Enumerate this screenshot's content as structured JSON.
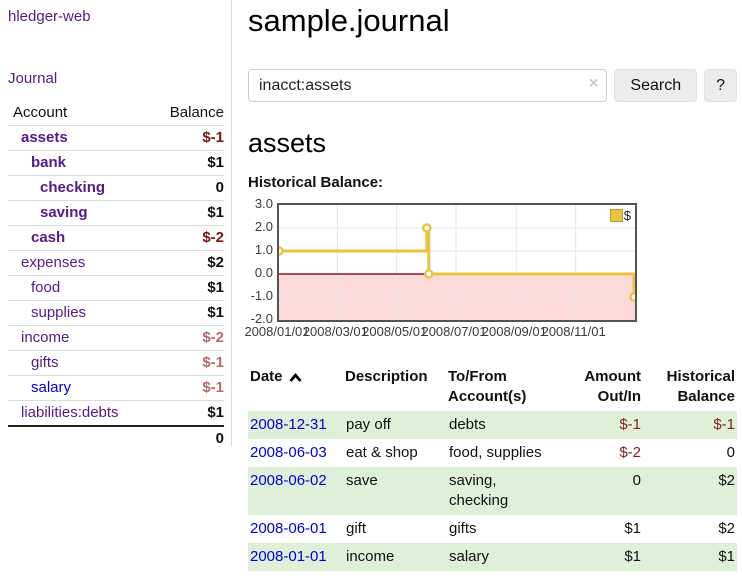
{
  "app": {
    "brand": "hledger-web"
  },
  "nav": {
    "journal": "Journal"
  },
  "sidebar": {
    "headers": [
      "Account",
      "Balance"
    ],
    "accounts": [
      {
        "name": "assets",
        "level": 1,
        "bold": true,
        "balance": "$-1",
        "neg": "neg-strong"
      },
      {
        "name": "bank",
        "level": 2,
        "bold": true,
        "balance": "$1",
        "neg": ""
      },
      {
        "name": "checking",
        "level": 3,
        "bold": true,
        "balance": "0",
        "neg": ""
      },
      {
        "name": "saving",
        "level": 3,
        "bold": true,
        "balance": "$1",
        "neg": ""
      },
      {
        "name": "cash",
        "level": 2,
        "bold": true,
        "balance": "$-2",
        "neg": "neg-strong"
      },
      {
        "name": "expenses",
        "level": 1,
        "bold": false,
        "balance": "$2",
        "neg": ""
      },
      {
        "name": "food",
        "level": 2,
        "bold": false,
        "balance": "$1",
        "neg": ""
      },
      {
        "name": "supplies",
        "level": 2,
        "bold": false,
        "balance": "$1",
        "neg": ""
      },
      {
        "name": "income",
        "level": 1,
        "bold": false,
        "balance": "$-2",
        "neg": "neg-soft"
      },
      {
        "name": "gifts",
        "level": 2,
        "bold": false,
        "balance": "$-1",
        "neg": "neg-soft"
      },
      {
        "name": "salary",
        "level": 2,
        "bold": false,
        "balance": "$-1",
        "neg": "neg-soft",
        "blue": true
      },
      {
        "name": "liabilities:debts",
        "level": 1,
        "bold": false,
        "balance": "$1",
        "neg": ""
      }
    ],
    "total": "0"
  },
  "page": {
    "title": "sample.journal",
    "heading": "assets",
    "chart_label": "Historical Balance:"
  },
  "search": {
    "query": "inacct:assets",
    "clear_icon": "×",
    "search_button": "Search",
    "help_button": "?"
  },
  "register": {
    "headers": [
      "Date",
      "Description",
      "To/From Account(s)",
      "Amount Out/In",
      "Historical Balance"
    ],
    "sort": "ascending",
    "rows": [
      {
        "date": "2008-12-31",
        "description": "pay off",
        "accounts": "debts",
        "amount": "$-1",
        "balance": "$-1"
      },
      {
        "date": "2008-06-03",
        "description": "eat & shop",
        "accounts": "food, supplies",
        "amount": "$-2",
        "balance": "0"
      },
      {
        "date": "2008-06-02",
        "description": "save",
        "accounts": "saving, checking",
        "amount": "0",
        "balance": "$2"
      },
      {
        "date": "2008-06-01",
        "description": "gift",
        "accounts": "gifts",
        "amount": "$1",
        "balance": "$2"
      },
      {
        "date": "2008-01-01",
        "description": "income",
        "accounts": "salary",
        "amount": "$1",
        "balance": "$1"
      }
    ]
  },
  "chart_data": {
    "type": "line",
    "title": "Historical Balance:",
    "step": true,
    "series": [
      {
        "name": "$",
        "color": "#edc240",
        "points": [
          [
            "2008-01-01",
            1
          ],
          [
            "2008-06-01",
            2
          ],
          [
            "2008-06-03",
            0
          ],
          [
            "2008-12-31",
            -1
          ]
        ]
      }
    ],
    "x_range": [
      "2008-01-01",
      "2009-01-01"
    ],
    "x_ticks": [
      "2008/01/01",
      "2008/03/01",
      "2008/05/01",
      "2008/07/01",
      "2008/09/01",
      "2008/11/01"
    ],
    "ylim": [
      -2,
      3
    ],
    "y_ticks": [
      "3.0",
      "2.0",
      "1.0",
      "0.0",
      "-1.0",
      "-2.0"
    ],
    "grid": true,
    "legend_position": "top-right",
    "zero_line_color": "#8b1a1a",
    "negative_region_color": "#fcdada",
    "gridline_color": "#e6e6e6",
    "border_color": "#545454"
  },
  "colors": {
    "link_purple": "#551a8b",
    "link_blue": "#0000dd",
    "negative_strong": "#821212",
    "negative_soft": "#b36b6b",
    "row_green": "#dff0d8",
    "series_gold": "#edc240"
  }
}
